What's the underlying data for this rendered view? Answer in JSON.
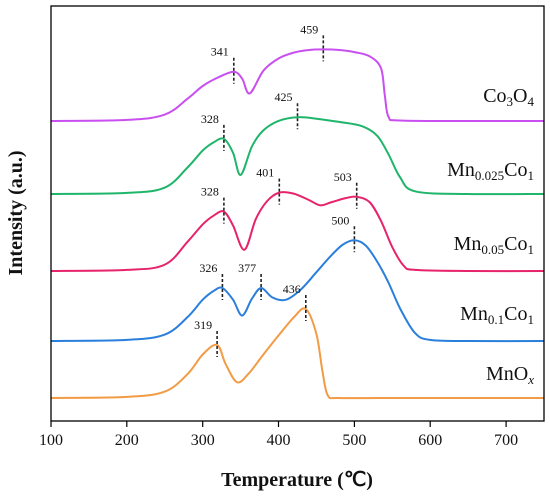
{
  "chart_data": {
    "type": "line",
    "title": "",
    "xlabel": "Temperature (℃)",
    "ylabel": "Intensity (a.u.)",
    "xlim": [
      100,
      750
    ],
    "x_ticks": [
      100,
      200,
      300,
      400,
      500,
      600,
      700
    ],
    "y_ticks_shown": false,
    "grid": false,
    "legend": "labels beside each curve",
    "series": [
      {
        "key": "co3o4",
        "name_base": "Co",
        "name_sub1": "3",
        "name_mid": "O",
        "name_sub2": "4",
        "name_tail": "",
        "color": "#c94ff0",
        "x": [
          100,
          200,
          250,
          280,
          300,
          320,
          341,
          352,
          362,
          380,
          400,
          420,
          440,
          459,
          480,
          500,
          520,
          535,
          540,
          545,
          560,
          650,
          750
        ],
        "y": [
          0,
          0.02,
          0.12,
          0.42,
          0.66,
          0.82,
          0.93,
          0.8,
          0.52,
          0.95,
          1.18,
          1.29,
          1.34,
          1.35,
          1.34,
          1.3,
          1.22,
          1.0,
          0.5,
          0.08,
          0.01,
          0,
          0
        ],
        "peaks": [
          341,
          459
        ]
      },
      {
        "key": "mn0025",
        "name_base": "Mn",
        "name_sub1": "0.025",
        "name_mid": "Co",
        "name_sub2": "1",
        "name_tail": "",
        "color": "#1fb56a",
        "x": [
          100,
          200,
          250,
          280,
          300,
          315,
          328,
          340,
          350,
          365,
          380,
          400,
          425,
          450,
          480,
          510,
          530,
          545,
          560,
          580,
          650,
          750
        ],
        "y": [
          0,
          0.02,
          0.12,
          0.5,
          0.82,
          0.98,
          1.04,
          0.78,
          0.36,
          0.9,
          1.2,
          1.38,
          1.45,
          1.42,
          1.36,
          1.28,
          1.1,
          0.75,
          0.32,
          0.05,
          0,
          0
        ],
        "peaks": [
          328,
          425
        ]
      },
      {
        "key": "mn005",
        "name_base": "Mn",
        "name_sub1": "0.05",
        "name_mid": "Co",
        "name_sub2": "1",
        "name_tail": "",
        "color": "#e6236b",
        "x": [
          100,
          200,
          250,
          280,
          300,
          315,
          328,
          340,
          355,
          370,
          385,
          401,
          420,
          440,
          455,
          470,
          490,
          503,
          520,
          535,
          550,
          565,
          580,
          650,
          750
        ],
        "y": [
          0,
          0.02,
          0.12,
          0.55,
          0.88,
          1.05,
          1.12,
          0.86,
          0.4,
          0.98,
          1.32,
          1.48,
          1.46,
          1.34,
          1.24,
          1.3,
          1.38,
          1.4,
          1.3,
          0.95,
          0.45,
          0.1,
          0.02,
          0,
          0
        ],
        "peaks": [
          328,
          401,
          503
        ]
      },
      {
        "key": "mn01",
        "name_base": "Mn",
        "name_sub1": "0.1",
        "name_mid": "Co",
        "name_sub2": "1",
        "name_tail": "",
        "color": "#2a7fdc",
        "x": [
          100,
          200,
          250,
          280,
          300,
          315,
          326,
          340,
          352,
          365,
          377,
          392,
          410,
          430,
          450,
          470,
          485,
          500,
          515,
          530,
          545,
          560,
          580,
          600,
          650,
          750
        ],
        "y": [
          0,
          0.02,
          0.12,
          0.45,
          0.78,
          0.95,
          1.0,
          0.78,
          0.48,
          0.8,
          1.0,
          0.82,
          0.78,
          0.98,
          1.3,
          1.62,
          1.82,
          1.9,
          1.8,
          1.5,
          1.1,
          0.62,
          0.15,
          0.02,
          0,
          0
        ],
        "peaks": [
          326,
          377,
          500
        ]
      },
      {
        "key": "mnox",
        "name_base": "MnO",
        "name_sub1": "",
        "name_mid": "",
        "name_sub2": "",
        "name_tail": "x",
        "color": "#f29b45",
        "x": [
          100,
          200,
          250,
          280,
          300,
          319,
          330,
          345,
          360,
          380,
          400,
          420,
          436,
          450,
          458,
          465,
          480,
          550,
          750
        ],
        "y": [
          0,
          0.02,
          0.12,
          0.45,
          0.82,
          1.0,
          0.65,
          0.3,
          0.45,
          0.82,
          1.18,
          1.52,
          1.68,
          1.2,
          0.5,
          0.05,
          0,
          0,
          0
        ],
        "peaks": [
          319,
          436
        ]
      }
    ]
  }
}
